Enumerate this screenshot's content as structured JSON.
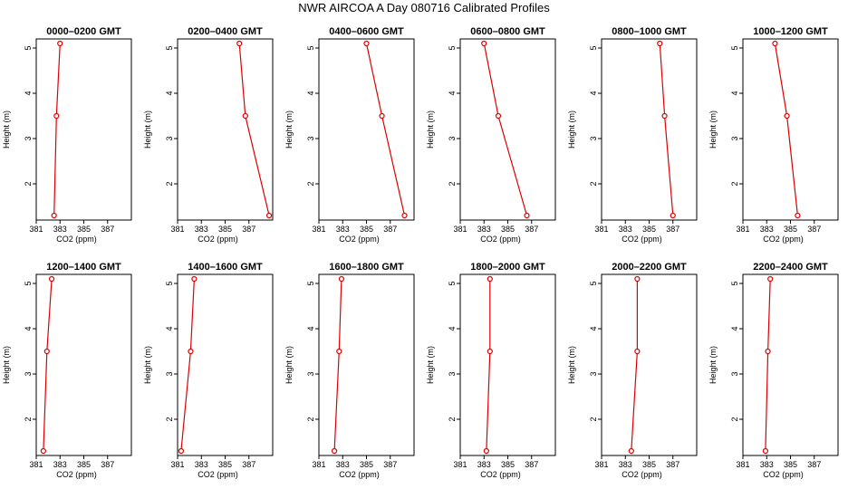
{
  "figure": {
    "title": "NWR AIRCOA A  Day 080716  Calibrated Profiles"
  },
  "style": {
    "line_color": "#dd0000",
    "axis_color": "#000000"
  },
  "chart_data": [
    {
      "type": "line",
      "title": "0000–0200 GMT",
      "xlabel": "CO2 (ppm)",
      "ylabel": "Height (m)",
      "xlim": [
        381,
        389
      ],
      "ylim": [
        1.2,
        5.2
      ],
      "xticks": [
        381,
        383,
        385,
        387
      ],
      "yticks": [
        2,
        3,
        4,
        5
      ],
      "series": [
        {
          "x": [
            382.5,
            382.7,
            383.0
          ],
          "y": [
            1.3,
            3.5,
            5.1
          ]
        }
      ]
    },
    {
      "type": "line",
      "title": "0200–0400 GMT",
      "xlabel": "CO2 (ppm)",
      "ylabel": "Height (m)",
      "xlim": [
        381,
        389
      ],
      "ylim": [
        1.2,
        5.2
      ],
      "xticks": [
        381,
        383,
        385,
        387
      ],
      "yticks": [
        2,
        3,
        4,
        5
      ],
      "series": [
        {
          "x": [
            388.7,
            386.7,
            386.2
          ],
          "y": [
            1.3,
            3.5,
            5.1
          ]
        }
      ]
    },
    {
      "type": "line",
      "title": "0400–0600 GMT",
      "xlabel": "CO2 (ppm)",
      "ylabel": "Height (m)",
      "xlim": [
        381,
        389
      ],
      "ylim": [
        1.2,
        5.2
      ],
      "xticks": [
        381,
        383,
        385,
        387
      ],
      "yticks": [
        2,
        3,
        4,
        5
      ],
      "series": [
        {
          "x": [
            388.2,
            386.3,
            385.0
          ],
          "y": [
            1.3,
            3.5,
            5.1
          ]
        }
      ]
    },
    {
      "type": "line",
      "title": "0600–0800 GMT",
      "xlabel": "CO2 (ppm)",
      "ylabel": "Height (m)",
      "xlim": [
        381,
        389
      ],
      "ylim": [
        1.2,
        5.2
      ],
      "xticks": [
        381,
        383,
        385,
        387
      ],
      "yticks": [
        2,
        3,
        4,
        5
      ],
      "series": [
        {
          "x": [
            386.6,
            384.2,
            383.0
          ],
          "y": [
            1.3,
            3.5,
            5.1
          ]
        }
      ]
    },
    {
      "type": "line",
      "title": "0800–1000 GMT",
      "xlabel": "CO2 (ppm)",
      "ylabel": "Height (m)",
      "xlim": [
        381,
        389
      ],
      "ylim": [
        1.2,
        5.2
      ],
      "xticks": [
        381,
        383,
        385,
        387
      ],
      "yticks": [
        2,
        3,
        4,
        5
      ],
      "series": [
        {
          "x": [
            387.0,
            386.3,
            385.9
          ],
          "y": [
            1.3,
            3.5,
            5.1
          ]
        }
      ]
    },
    {
      "type": "line",
      "title": "1000–1200 GMT",
      "xlabel": "CO2 (ppm)",
      "ylabel": "Height (m)",
      "xlim": [
        381,
        389
      ],
      "ylim": [
        1.2,
        5.2
      ],
      "xticks": [
        381,
        383,
        385,
        387
      ],
      "yticks": [
        2,
        3,
        4,
        5
      ],
      "series": [
        {
          "x": [
            385.6,
            384.7,
            383.7
          ],
          "y": [
            1.3,
            3.5,
            5.1
          ]
        }
      ]
    },
    {
      "type": "line",
      "title": "1200–1400 GMT",
      "xlabel": "CO2 (ppm)",
      "ylabel": "Height (m)",
      "xlim": [
        381,
        389
      ],
      "ylim": [
        1.2,
        5.2
      ],
      "xticks": [
        381,
        383,
        385,
        387
      ],
      "yticks": [
        2,
        3,
        4,
        5
      ],
      "series": [
        {
          "x": [
            381.6,
            381.9,
            382.3
          ],
          "y": [
            1.3,
            3.5,
            5.1
          ]
        }
      ]
    },
    {
      "type": "line",
      "title": "1400–1600 GMT",
      "xlabel": "CO2 (ppm)",
      "ylabel": "Height (m)",
      "xlim": [
        381,
        389
      ],
      "ylim": [
        1.2,
        5.2
      ],
      "xticks": [
        381,
        383,
        385,
        387
      ],
      "yticks": [
        2,
        3,
        4,
        5
      ],
      "series": [
        {
          "x": [
            381.3,
            382.1,
            382.4
          ],
          "y": [
            1.3,
            3.5,
            5.1
          ]
        }
      ]
    },
    {
      "type": "line",
      "title": "1600–1800 GMT",
      "xlabel": "CO2 (ppm)",
      "ylabel": "Height (m)",
      "xlim": [
        381,
        389
      ],
      "ylim": [
        1.2,
        5.2
      ],
      "xticks": [
        381,
        383,
        385,
        387
      ],
      "yticks": [
        2,
        3,
        4,
        5
      ],
      "series": [
        {
          "x": [
            382.3,
            382.7,
            382.9
          ],
          "y": [
            1.3,
            3.5,
            5.1
          ]
        }
      ]
    },
    {
      "type": "line",
      "title": "1800–2000 GMT",
      "xlabel": "CO2 (ppm)",
      "ylabel": "Height (m)",
      "xlim": [
        381,
        389
      ],
      "ylim": [
        1.2,
        5.2
      ],
      "xticks": [
        381,
        383,
        385,
        387
      ],
      "yticks": [
        2,
        3,
        4,
        5
      ],
      "series": [
        {
          "x": [
            383.2,
            383.5,
            383.5
          ],
          "y": [
            1.3,
            3.5,
            5.1
          ]
        }
      ]
    },
    {
      "type": "line",
      "title": "2000–2200 GMT",
      "xlabel": "CO2 (ppm)",
      "ylabel": "Height (m)",
      "xlim": [
        381,
        389
      ],
      "ylim": [
        1.2,
        5.2
      ],
      "xticks": [
        381,
        383,
        385,
        387
      ],
      "yticks": [
        2,
        3,
        4,
        5
      ],
      "series": [
        {
          "x": [
            383.5,
            384.0,
            384.0
          ],
          "y": [
            1.3,
            3.5,
            5.1
          ]
        }
      ]
    },
    {
      "type": "line",
      "title": "2200–2400 GMT",
      "xlabel": "CO2 (ppm)",
      "ylabel": "Height (m)",
      "xlim": [
        381,
        389
      ],
      "ylim": [
        1.2,
        5.2
      ],
      "xticks": [
        381,
        383,
        385,
        387
      ],
      "yticks": [
        2,
        3,
        4,
        5
      ],
      "series": [
        {
          "x": [
            382.9,
            383.1,
            383.3
          ],
          "y": [
            1.3,
            3.5,
            5.1
          ]
        }
      ]
    }
  ]
}
